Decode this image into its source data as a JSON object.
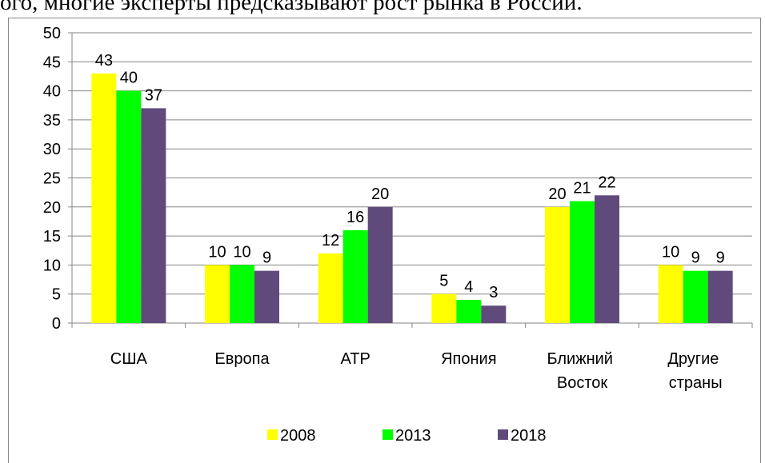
{
  "header_text": "ого, многие эксперты предсказывают рост рынка в России.",
  "chart_data": {
    "type": "bar",
    "categories": [
      "США",
      "Европа",
      "АТР",
      "Япония",
      "Ближний Восток",
      "Другие страны"
    ],
    "series": [
      {
        "name": "2008",
        "color": "#ffff00",
        "values": [
          43,
          10,
          12,
          5,
          20,
          10
        ]
      },
      {
        "name": "2013",
        "color": "#00ff00",
        "values": [
          40,
          10,
          16,
          4,
          21,
          9
        ]
      },
      {
        "name": "2018",
        "color": "#604a7b",
        "values": [
          37,
          9,
          20,
          3,
          22,
          9
        ]
      }
    ],
    "ylim": [
      0,
      50
    ],
    "yticks": [
      0,
      5,
      10,
      15,
      20,
      25,
      30,
      35,
      40,
      45,
      50
    ],
    "grid": true,
    "legend": "bottom"
  }
}
